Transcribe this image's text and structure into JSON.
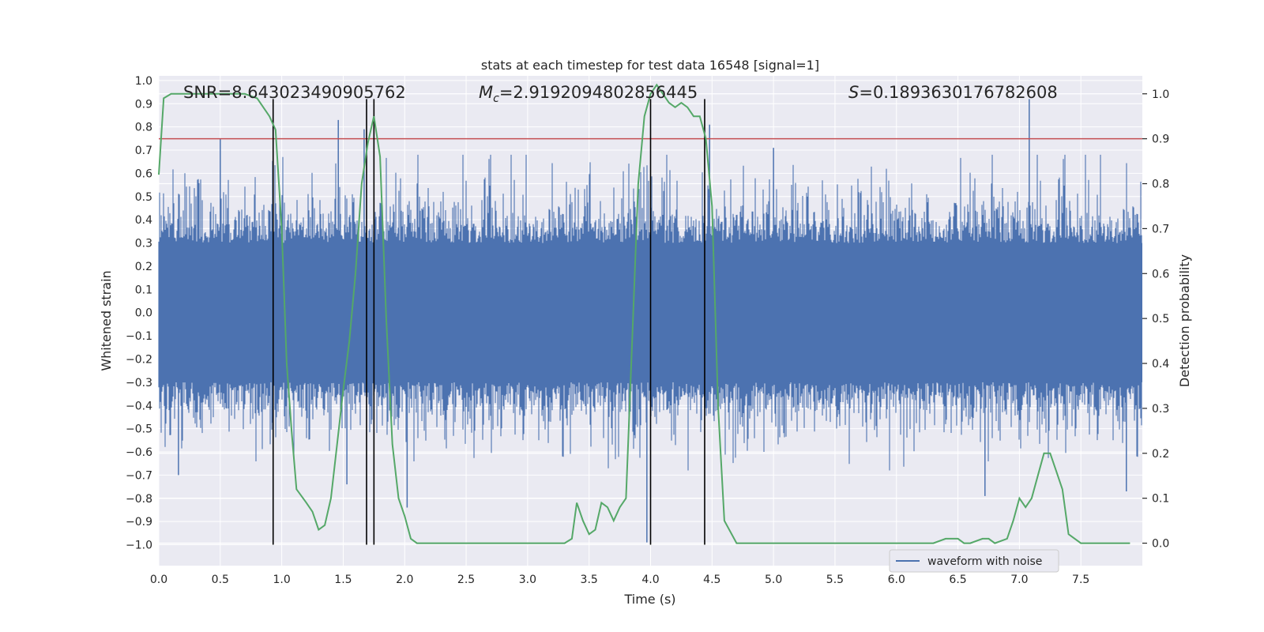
{
  "chart_data": {
    "type": "line",
    "title": "stats at each timestep for test data 16548 [signal=1]",
    "xlabel": "Time (s)",
    "ylabel": "Whitened strain",
    "ylabel_right": "Detection probability",
    "xlim": [
      0.0,
      8.0
    ],
    "ylim": [
      -1.09,
      1.02
    ],
    "ylim_right": [
      -0.05,
      1.04
    ],
    "x_ticks": [
      "0.0",
      "0.5",
      "1.0",
      "1.5",
      "2.0",
      "2.5",
      "3.0",
      "3.5",
      "4.0",
      "4.5",
      "5.0",
      "5.5",
      "6.0",
      "6.5",
      "7.0",
      "7.5"
    ],
    "y_ticks": [
      "1.0",
      "0.9",
      "0.8",
      "0.7",
      "0.6",
      "0.5",
      "0.4",
      "0.3",
      "0.2",
      "0.1",
      "0.0",
      "−0.1",
      "−0.2",
      "−0.3",
      "−0.4",
      "−0.5",
      "−0.6",
      "−0.7",
      "−0.8",
      "−0.9",
      "−1.0"
    ],
    "y_ticks_right": [
      "1.0",
      "0.9",
      "0.8",
      "0.7",
      "0.6",
      "0.5",
      "0.4",
      "0.3",
      "0.2",
      "0.1",
      "0.0"
    ],
    "annotations": {
      "snr": "SNR=8.643023490905762",
      "mc_symbol": "M",
      "mc_sub": "c",
      "mc_value": "=2.9192094802856445",
      "s_symbol": "S",
      "s_value": "=0.1893630176782608"
    },
    "legend": {
      "label": "waveform with noise",
      "placement": "lower-right"
    },
    "threshold": {
      "value": 0.9,
      "axis": "right",
      "color": "#c44e52"
    },
    "vlines": [
      0.93,
      1.69,
      1.75,
      4.0,
      4.44
    ],
    "vline_range": [
      -1.0,
      0.92
    ],
    "spike_highlights": [
      {
        "x": 0.5,
        "y": 0.75
      },
      {
        "x": 1.46,
        "y": 0.83
      },
      {
        "x": 1.67,
        "y": 0.79
      },
      {
        "x": 4.48,
        "y": 0.81
      },
      {
        "x": 7.08,
        "y": 0.92
      },
      {
        "x": 5.0,
        "y": 0.71
      },
      {
        "x": 3.97,
        "y": -0.99
      },
      {
        "x": 6.72,
        "y": -0.79
      },
      {
        "x": 1.53,
        "y": -0.74
      },
      {
        "x": 0.16,
        "y": -0.7
      },
      {
        "x": 7.87,
        "y": -0.77
      },
      {
        "x": 2.02,
        "y": -0.84
      }
    ],
    "series": [
      {
        "name": "waveform with noise",
        "axis": "left",
        "color": "#4c72b0",
        "style": "dense noise, core band about ±0.3, spikes to about ±0.8"
      },
      {
        "name": "detection probability",
        "axis": "right",
        "color": "#55a868",
        "x": [
          0.0,
          0.04,
          0.1,
          0.2,
          0.3,
          0.4,
          0.5,
          0.6,
          0.7,
          0.8,
          0.85,
          0.9,
          0.95,
          1.0,
          1.04,
          1.08,
          1.12,
          1.2,
          1.25,
          1.3,
          1.35,
          1.4,
          1.45,
          1.5,
          1.55,
          1.6,
          1.65,
          1.7,
          1.75,
          1.8,
          1.85,
          1.9,
          1.95,
          2.0,
          2.05,
          2.1,
          2.2,
          2.3,
          2.4,
          2.5,
          2.6,
          2.7,
          2.8,
          2.9,
          3.0,
          3.1,
          3.2,
          3.3,
          3.36,
          3.4,
          3.45,
          3.5,
          3.55,
          3.6,
          3.65,
          3.7,
          3.75,
          3.8,
          3.85,
          3.9,
          3.95,
          4.0,
          4.05,
          4.1,
          4.15,
          4.2,
          4.25,
          4.3,
          4.35,
          4.4,
          4.45,
          4.5,
          4.55,
          4.6,
          4.7,
          4.8,
          4.9,
          5.0,
          5.1,
          5.2,
          5.3,
          5.4,
          5.5,
          5.6,
          5.7,
          5.8,
          5.9,
          6.0,
          6.1,
          6.2,
          6.3,
          6.4,
          6.45,
          6.5,
          6.55,
          6.6,
          6.7,
          6.75,
          6.8,
          6.9,
          6.95,
          7.0,
          7.05,
          7.1,
          7.15,
          7.2,
          7.25,
          7.3,
          7.35,
          7.4,
          7.5,
          7.6,
          7.7,
          7.8,
          7.9
        ],
        "values": [
          0.82,
          0.99,
          1.0,
          1.0,
          1.0,
          1.0,
          1.0,
          1.0,
          1.0,
          0.99,
          0.97,
          0.95,
          0.92,
          0.7,
          0.4,
          0.25,
          0.12,
          0.09,
          0.07,
          0.03,
          0.04,
          0.1,
          0.22,
          0.34,
          0.45,
          0.6,
          0.8,
          0.89,
          0.95,
          0.86,
          0.5,
          0.22,
          0.1,
          0.06,
          0.01,
          0.0,
          0.0,
          0.0,
          0.0,
          0.0,
          0.0,
          0.0,
          0.0,
          0.0,
          0.0,
          0.0,
          0.0,
          0.0,
          0.01,
          0.09,
          0.05,
          0.02,
          0.03,
          0.09,
          0.08,
          0.05,
          0.08,
          0.1,
          0.45,
          0.8,
          0.95,
          1.0,
          1.02,
          1.0,
          0.98,
          0.97,
          0.98,
          0.97,
          0.95,
          0.95,
          0.9,
          0.75,
          0.3,
          0.05,
          0.0,
          0.0,
          0.0,
          0.0,
          0.0,
          0.0,
          0.0,
          0.0,
          0.0,
          0.0,
          0.0,
          0.0,
          0.0,
          0.0,
          0.0,
          0.0,
          0.0,
          0.01,
          0.01,
          0.01,
          0.0,
          0.0,
          0.01,
          0.01,
          0.0,
          0.01,
          0.05,
          0.1,
          0.08,
          0.1,
          0.15,
          0.2,
          0.2,
          0.16,
          0.12,
          0.02,
          0.0,
          0.0,
          0.0,
          0.0,
          0.0
        ]
      }
    ]
  }
}
